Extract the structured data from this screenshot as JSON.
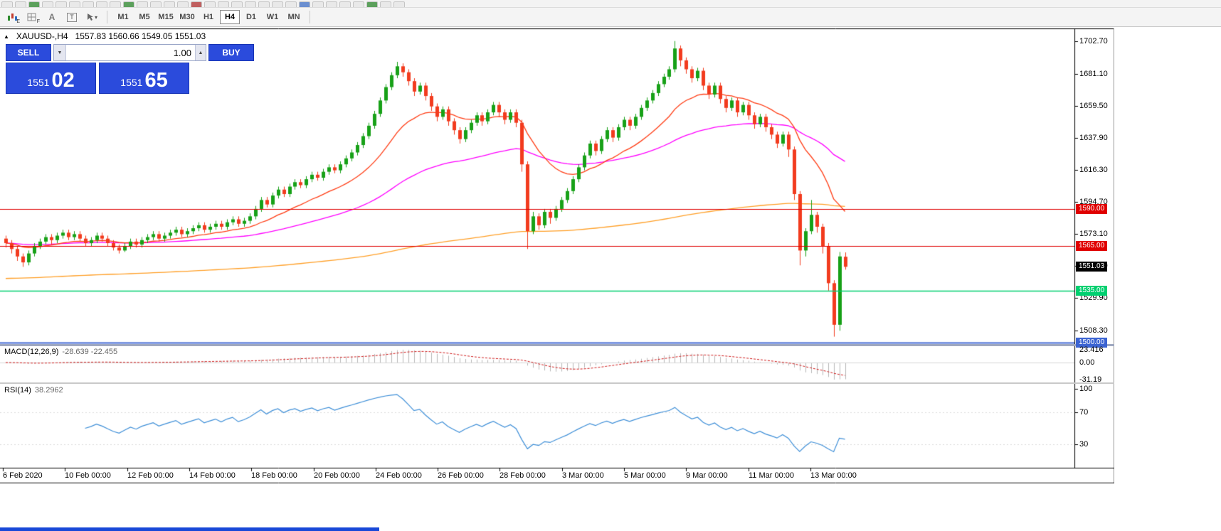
{
  "toolbar": {
    "tools": [
      {
        "name": "chart-e",
        "sub": "E"
      },
      {
        "name": "grid-f",
        "sub": "F"
      },
      {
        "name": "text-a",
        "glyph": "A"
      },
      {
        "name": "textbox-t",
        "glyph": "T"
      },
      {
        "name": "draw-tools",
        "dd": "▾"
      }
    ],
    "timeframes": [
      {
        "label": "M1",
        "active": false
      },
      {
        "label": "M5",
        "active": false
      },
      {
        "label": "M15",
        "active": false
      },
      {
        "label": "M30",
        "active": false
      },
      {
        "label": "H1",
        "active": false
      },
      {
        "label": "H4",
        "active": true
      },
      {
        "label": "D1",
        "active": false
      },
      {
        "label": "W1",
        "active": false
      },
      {
        "label": "MN",
        "active": false
      }
    ]
  },
  "chart": {
    "expand_glyph": "▲",
    "symbol_period": "XAUUSD-,H4",
    "ohlc": "1557.83 1560.66 1549.05 1551.03",
    "trade_panel": {
      "sell_label": "SELL",
      "buy_label": "BUY",
      "lot": "1.00",
      "lot_dropdown_glyph": "▼",
      "lot_spin_glyph": "▲",
      "bid_small": "1551",
      "bid_big": "02",
      "ask_small": "1551",
      "ask_big": "65"
    }
  },
  "chart_data": {
    "type": "candlestick",
    "symbol": "XAUUSD-",
    "timeframe": "H4",
    "current_bar": {
      "open": "1557.83",
      "high": "1560.66",
      "low": "1549.05",
      "close": "1551.03"
    },
    "colors": {
      "bull": "#17a117",
      "bear": "#f23b1e",
      "ma_fast": "#ff3c14",
      "ma_mid": "#ff00ff",
      "ma_slow": "#ffa028",
      "rsi": "#3e8fd8",
      "macd_hist": "#b8b8b8",
      "macd_signal": "#d01818"
    },
    "candles": [
      [
        1570,
        1572,
        1564,
        1567
      ],
      [
        1567,
        1569,
        1560,
        1563
      ],
      [
        1563,
        1565,
        1555,
        1558
      ],
      [
        1558,
        1560,
        1551,
        1554
      ],
      [
        1554,
        1562,
        1552,
        1560
      ],
      [
        1560,
        1567,
        1558,
        1565
      ],
      [
        1565,
        1570,
        1563,
        1568
      ],
      [
        1568,
        1573,
        1566,
        1571
      ],
      [
        1571,
        1573,
        1566,
        1569
      ],
      [
        1569,
        1574,
        1567,
        1572
      ],
      [
        1572,
        1576,
        1570,
        1574
      ],
      [
        1574,
        1576,
        1569,
        1571
      ],
      [
        1571,
        1575,
        1569,
        1573
      ],
      [
        1573,
        1575,
        1568,
        1570
      ],
      [
        1570,
        1572,
        1565,
        1567
      ],
      [
        1567,
        1571,
        1565,
        1569
      ],
      [
        1569,
        1574,
        1567,
        1572
      ],
      [
        1572,
        1574,
        1568,
        1570
      ],
      [
        1570,
        1572,
        1565,
        1567
      ],
      [
        1567,
        1569,
        1562,
        1564
      ],
      [
        1564,
        1566,
        1560,
        1562
      ],
      [
        1562,
        1567,
        1561,
        1565
      ],
      [
        1565,
        1570,
        1563,
        1568
      ],
      [
        1568,
        1570,
        1564,
        1566
      ],
      [
        1566,
        1571,
        1564,
        1569
      ],
      [
        1569,
        1573,
        1567,
        1571
      ],
      [
        1571,
        1575,
        1569,
        1573
      ],
      [
        1573,
        1575,
        1568,
        1570
      ],
      [
        1570,
        1574,
        1568,
        1572
      ],
      [
        1572,
        1576,
        1570,
        1574
      ],
      [
        1574,
        1578,
        1572,
        1576
      ],
      [
        1576,
        1578,
        1571,
        1573
      ],
      [
        1573,
        1577,
        1571,
        1575
      ],
      [
        1575,
        1579,
        1573,
        1577
      ],
      [
        1577,
        1581,
        1575,
        1579
      ],
      [
        1579,
        1581,
        1574,
        1576
      ],
      [
        1576,
        1580,
        1574,
        1578
      ],
      [
        1578,
        1582,
        1576,
        1580
      ],
      [
        1580,
        1582,
        1576,
        1578
      ],
      [
        1578,
        1583,
        1576,
        1581
      ],
      [
        1581,
        1585,
        1579,
        1583
      ],
      [
        1583,
        1585,
        1578,
        1580
      ],
      [
        1580,
        1584,
        1578,
        1582
      ],
      [
        1582,
        1587,
        1580,
        1585
      ],
      [
        1585,
        1592,
        1583,
        1590
      ],
      [
        1590,
        1598,
        1588,
        1596
      ],
      [
        1596,
        1598,
        1591,
        1593
      ],
      [
        1593,
        1601,
        1591,
        1599
      ],
      [
        1599,
        1605,
        1597,
        1603
      ],
      [
        1603,
        1605,
        1598,
        1600
      ],
      [
        1600,
        1607,
        1598,
        1605
      ],
      [
        1605,
        1610,
        1603,
        1608
      ],
      [
        1608,
        1610,
        1604,
        1606
      ],
      [
        1606,
        1612,
        1604,
        1610
      ],
      [
        1610,
        1615,
        1608,
        1613
      ],
      [
        1613,
        1615,
        1609,
        1611
      ],
      [
        1611,
        1617,
        1609,
        1615
      ],
      [
        1615,
        1620,
        1613,
        1618
      ],
      [
        1618,
        1620,
        1614,
        1616
      ],
      [
        1616,
        1622,
        1614,
        1620
      ],
      [
        1620,
        1626,
        1618,
        1624
      ],
      [
        1624,
        1630,
        1622,
        1628
      ],
      [
        1628,
        1635,
        1626,
        1633
      ],
      [
        1633,
        1641,
        1631,
        1639
      ],
      [
        1639,
        1648,
        1637,
        1646
      ],
      [
        1646,
        1656,
        1644,
        1654
      ],
      [
        1654,
        1665,
        1652,
        1663
      ],
      [
        1663,
        1674,
        1661,
        1672
      ],
      [
        1672,
        1682,
        1670,
        1680
      ],
      [
        1680,
        1689,
        1678,
        1686
      ],
      [
        1686,
        1688,
        1679,
        1682
      ],
      [
        1682,
        1684,
        1673,
        1676
      ],
      [
        1676,
        1678,
        1666,
        1669
      ],
      [
        1669,
        1675,
        1667,
        1673
      ],
      [
        1673,
        1675,
        1663,
        1666
      ],
      [
        1666,
        1668,
        1656,
        1659
      ],
      [
        1659,
        1661,
        1649,
        1652
      ],
      [
        1652,
        1659,
        1650,
        1657
      ],
      [
        1657,
        1659,
        1646,
        1649
      ],
      [
        1649,
        1651,
        1640,
        1643
      ],
      [
        1643,
        1645,
        1634,
        1637
      ],
      [
        1637,
        1645,
        1635,
        1643
      ],
      [
        1643,
        1650,
        1641,
        1648
      ],
      [
        1648,
        1655,
        1646,
        1653
      ],
      [
        1653,
        1655,
        1646,
        1649
      ],
      [
        1649,
        1657,
        1647,
        1655
      ],
      [
        1655,
        1662,
        1653,
        1660
      ],
      [
        1660,
        1662,
        1652,
        1655
      ],
      [
        1655,
        1657,
        1647,
        1650
      ],
      [
        1650,
        1657,
        1648,
        1655
      ],
      [
        1655,
        1657,
        1645,
        1648
      ],
      [
        1648,
        1650,
        1615,
        1620
      ],
      [
        1620,
        1622,
        1563,
        1575
      ],
      [
        1575,
        1588,
        1573,
        1585
      ],
      [
        1585,
        1587,
        1576,
        1579
      ],
      [
        1579,
        1590,
        1577,
        1588
      ],
      [
        1588,
        1590,
        1580,
        1584
      ],
      [
        1584,
        1592,
        1582,
        1590
      ],
      [
        1590,
        1598,
        1588,
        1596
      ],
      [
        1596,
        1604,
        1594,
        1602
      ],
      [
        1602,
        1612,
        1600,
        1610
      ],
      [
        1610,
        1620,
        1608,
        1618
      ],
      [
        1618,
        1628,
        1616,
        1626
      ],
      [
        1626,
        1636,
        1624,
        1634
      ],
      [
        1634,
        1636,
        1626,
        1629
      ],
      [
        1629,
        1639,
        1627,
        1637
      ],
      [
        1637,
        1645,
        1635,
        1643
      ],
      [
        1643,
        1645,
        1635,
        1638
      ],
      [
        1638,
        1647,
        1636,
        1645
      ],
      [
        1645,
        1652,
        1643,
        1650
      ],
      [
        1650,
        1652,
        1643,
        1646
      ],
      [
        1646,
        1654,
        1644,
        1652
      ],
      [
        1652,
        1660,
        1650,
        1658
      ],
      [
        1658,
        1665,
        1656,
        1663
      ],
      [
        1663,
        1670,
        1661,
        1668
      ],
      [
        1668,
        1676,
        1666,
        1674
      ],
      [
        1674,
        1681,
        1672,
        1679
      ],
      [
        1679,
        1686,
        1677,
        1684
      ],
      [
        1684,
        1703,
        1682,
        1698
      ],
      [
        1698,
        1700,
        1686,
        1690
      ],
      [
        1690,
        1692,
        1681,
        1684
      ],
      [
        1684,
        1686,
        1675,
        1678
      ],
      [
        1678,
        1685,
        1676,
        1683
      ],
      [
        1683,
        1685,
        1670,
        1673
      ],
      [
        1673,
        1675,
        1664,
        1667
      ],
      [
        1667,
        1675,
        1665,
        1673
      ],
      [
        1673,
        1675,
        1661,
        1664
      ],
      [
        1664,
        1666,
        1655,
        1658
      ],
      [
        1658,
        1665,
        1656,
        1663
      ],
      [
        1663,
        1665,
        1652,
        1655
      ],
      [
        1655,
        1662,
        1653,
        1660
      ],
      [
        1660,
        1662,
        1650,
        1653
      ],
      [
        1653,
        1655,
        1644,
        1647
      ],
      [
        1647,
        1654,
        1645,
        1652
      ],
      [
        1652,
        1654,
        1642,
        1645
      ],
      [
        1645,
        1647,
        1637,
        1640
      ],
      [
        1640,
        1642,
        1631,
        1634
      ],
      [
        1634,
        1642,
        1632,
        1640
      ],
      [
        1640,
        1642,
        1625,
        1630
      ],
      [
        1630,
        1632,
        1596,
        1600
      ],
      [
        1600,
        1602,
        1552,
        1562
      ],
      [
        1562,
        1577,
        1558,
        1575
      ],
      [
        1575,
        1596,
        1573,
        1586
      ],
      [
        1586,
        1588,
        1574,
        1578
      ],
      [
        1578,
        1580,
        1560,
        1565
      ],
      [
        1565,
        1567,
        1535,
        1540
      ],
      [
        1540,
        1542,
        1504,
        1512
      ],
      [
        1512,
        1561,
        1508,
        1558
      ],
      [
        1557.8,
        1560.7,
        1549.1,
        1551.03
      ]
    ],
    "moving_averages": [
      {
        "name": "fast",
        "period": 18
      },
      {
        "name": "mid",
        "period": 60
      },
      {
        "name": "slow",
        "period": 300,
        "seed": 1543
      }
    ],
    "levels": [
      {
        "price": 1590.0,
        "label": "1590.00",
        "color": "#e00000",
        "width": 1.2
      },
      {
        "price": 1565.0,
        "label": "1565.00",
        "color": "#e00000",
        "width": 1.2
      },
      {
        "price": 1535.0,
        "label": "1535.00",
        "color": "#00d070",
        "width": 1.6
      },
      {
        "price": 1500.0,
        "label": "1500.00",
        "color": "#3c64d2",
        "width": 2.2
      }
    ],
    "current_price_badge": {
      "price": 1551.03,
      "label": "1551.03",
      "bg": "#000000"
    },
    "price_axis": {
      "min": 1499.5,
      "max": 1711.5,
      "ticks": [
        {
          "value": 1702.7,
          "label": "1702.70"
        },
        {
          "value": 1681.1,
          "label": "1681.10"
        },
        {
          "value": 1659.5,
          "label": "1659.50"
        },
        {
          "value": 1637.9,
          "label": "1637.90"
        },
        {
          "value": 1616.3,
          "label": "1616.30"
        },
        {
          "value": 1594.7,
          "label": "1594.70"
        },
        {
          "value": 1573.1,
          "label": "1573.10"
        },
        {
          "value": 1551.5,
          "label": "1551.50"
        },
        {
          "value": 1529.9,
          "label": "1529.90"
        },
        {
          "value": 1508.3,
          "label": "1508.30"
        }
      ]
    },
    "x_labels": [
      "6 Feb 2020",
      "10 Feb 00:00",
      "12 Feb 00:00",
      "14 Feb 00:00",
      "18 Feb 00:00",
      "20 Feb 00:00",
      "24 Feb 00:00",
      "26 Feb 00:00",
      "28 Feb 00:00",
      "3 Mar 00:00",
      "5 Mar 00:00",
      "9 Mar 00:00",
      "11 Mar 00:00",
      "13 Mar 00:00"
    ],
    "macd": {
      "label": "MACD(12,26,9)",
      "values": "-28.639 -22.455",
      "params": [
        12,
        26,
        9
      ],
      "axis_labels": [
        "23.416",
        "0.00",
        "-31.19"
      ]
    },
    "rsi": {
      "label": "RSI(14)",
      "value": "38.2962",
      "period": 14,
      "axis": [
        {
          "value": 100,
          "label": "100"
        },
        {
          "value": 70,
          "label": "70"
        },
        {
          "value": 30,
          "label": "30"
        }
      ]
    }
  }
}
